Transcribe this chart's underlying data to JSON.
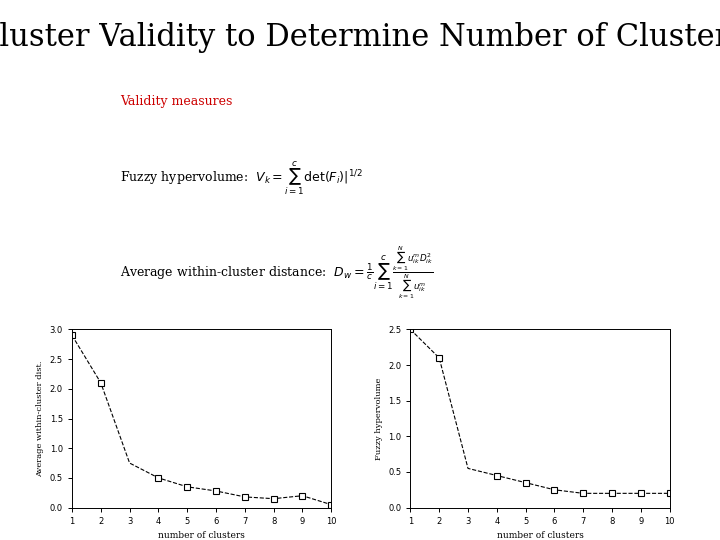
{
  "title_line1": "Cluster Validity to Determine Number of Clusters",
  "title_fontsize": 22,
  "background_color": "#ffffff",
  "validity_label": "Validity measures",
  "validity_color": "#cc0000",
  "x_values": [
    1,
    2,
    3,
    4,
    5,
    6,
    7,
    8,
    9,
    10
  ],
  "dw_values": [
    2.9,
    2.1,
    0.75,
    0.5,
    0.35,
    0.28,
    0.18,
    0.15,
    0.2,
    0.05
  ],
  "vk_values": [
    2.5,
    2.1,
    0.55,
    0.45,
    0.35,
    0.25,
    0.2,
    0.2,
    0.2,
    0.2
  ],
  "dw_marker_indices": [
    0,
    1,
    3,
    4,
    5,
    6,
    7,
    8,
    9
  ],
  "vk_marker_indices": [
    0,
    1,
    3,
    4,
    5,
    6,
    7,
    8,
    9
  ],
  "xlabel": "number of clusters",
  "ylabel_left": "Average within-cluster dist.",
  "ylabel_right": "Fuzzy hypervolume",
  "xlim": [
    1,
    10
  ],
  "dw_ylim": [
    0,
    3
  ],
  "vk_ylim": [
    0,
    2.5
  ],
  "dw_yticks": [
    0,
    0.5,
    1,
    1.5,
    2,
    2.5,
    3
  ],
  "vk_yticks": [
    0,
    0.5,
    1,
    1.5,
    2,
    2.5
  ],
  "xticks": [
    1,
    2,
    3,
    4,
    5,
    6,
    7,
    8,
    9,
    10
  ]
}
